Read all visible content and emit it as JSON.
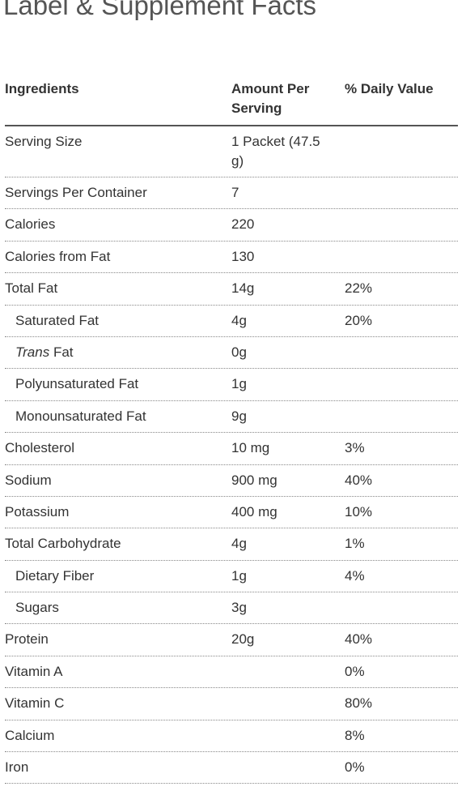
{
  "title": "Label & Supplement Facts",
  "table": {
    "headers": [
      "Ingredients",
      "Amount Per Serving",
      "% Daily Value"
    ],
    "rows": [
      {
        "name": "Serving Size",
        "amount": "1 Packet (47.5 g)"
      },
      {
        "name": "Servings Per Container",
        "amount": "7"
      },
      {
        "name": "Calories",
        "amount": "220"
      },
      {
        "name": "Calories from Fat",
        "amount": "130"
      },
      {
        "name": "Total Fat",
        "amount": "14g",
        "dv": "22%"
      },
      {
        "name": "Saturated Fat",
        "amount": "4g",
        "dv": "20%",
        "indent": true
      },
      {
        "name": [
          "Trans",
          "Fat"
        ],
        "amount": "0g",
        "indent": true
      },
      {
        "name": "Polyunsaturated Fat",
        "amount": "1g",
        "indent": true
      },
      {
        "name": "Monounsaturated Fat",
        "amount": "9g",
        "indent": true
      },
      {
        "name": "Cholesterol",
        "amount": "10 mg",
        "dv": "3%"
      },
      {
        "name": "Sodium",
        "amount": "900 mg",
        "dv": "40%"
      },
      {
        "name": "Potassium",
        "amount": "400 mg",
        "dv": "10%"
      },
      {
        "name": "Total Carbohydrate",
        "amount": "4g",
        "dv": "1%"
      },
      {
        "name": "Dietary Fiber",
        "amount": "1g",
        "dv": "4%",
        "indent": true
      },
      {
        "name": "Sugars",
        "amount": "3g",
        "indent": true
      },
      {
        "name": "Protein",
        "amount": "20g",
        "dv": "40%"
      },
      {
        "name": "Vitamin A",
        "dv": "0%"
      },
      {
        "name": "Vitamin C",
        "dv": "80%"
      },
      {
        "name": "Calcium",
        "dv": "8%"
      },
      {
        "name": "Iron",
        "dv": "0%"
      }
    ]
  }
}
